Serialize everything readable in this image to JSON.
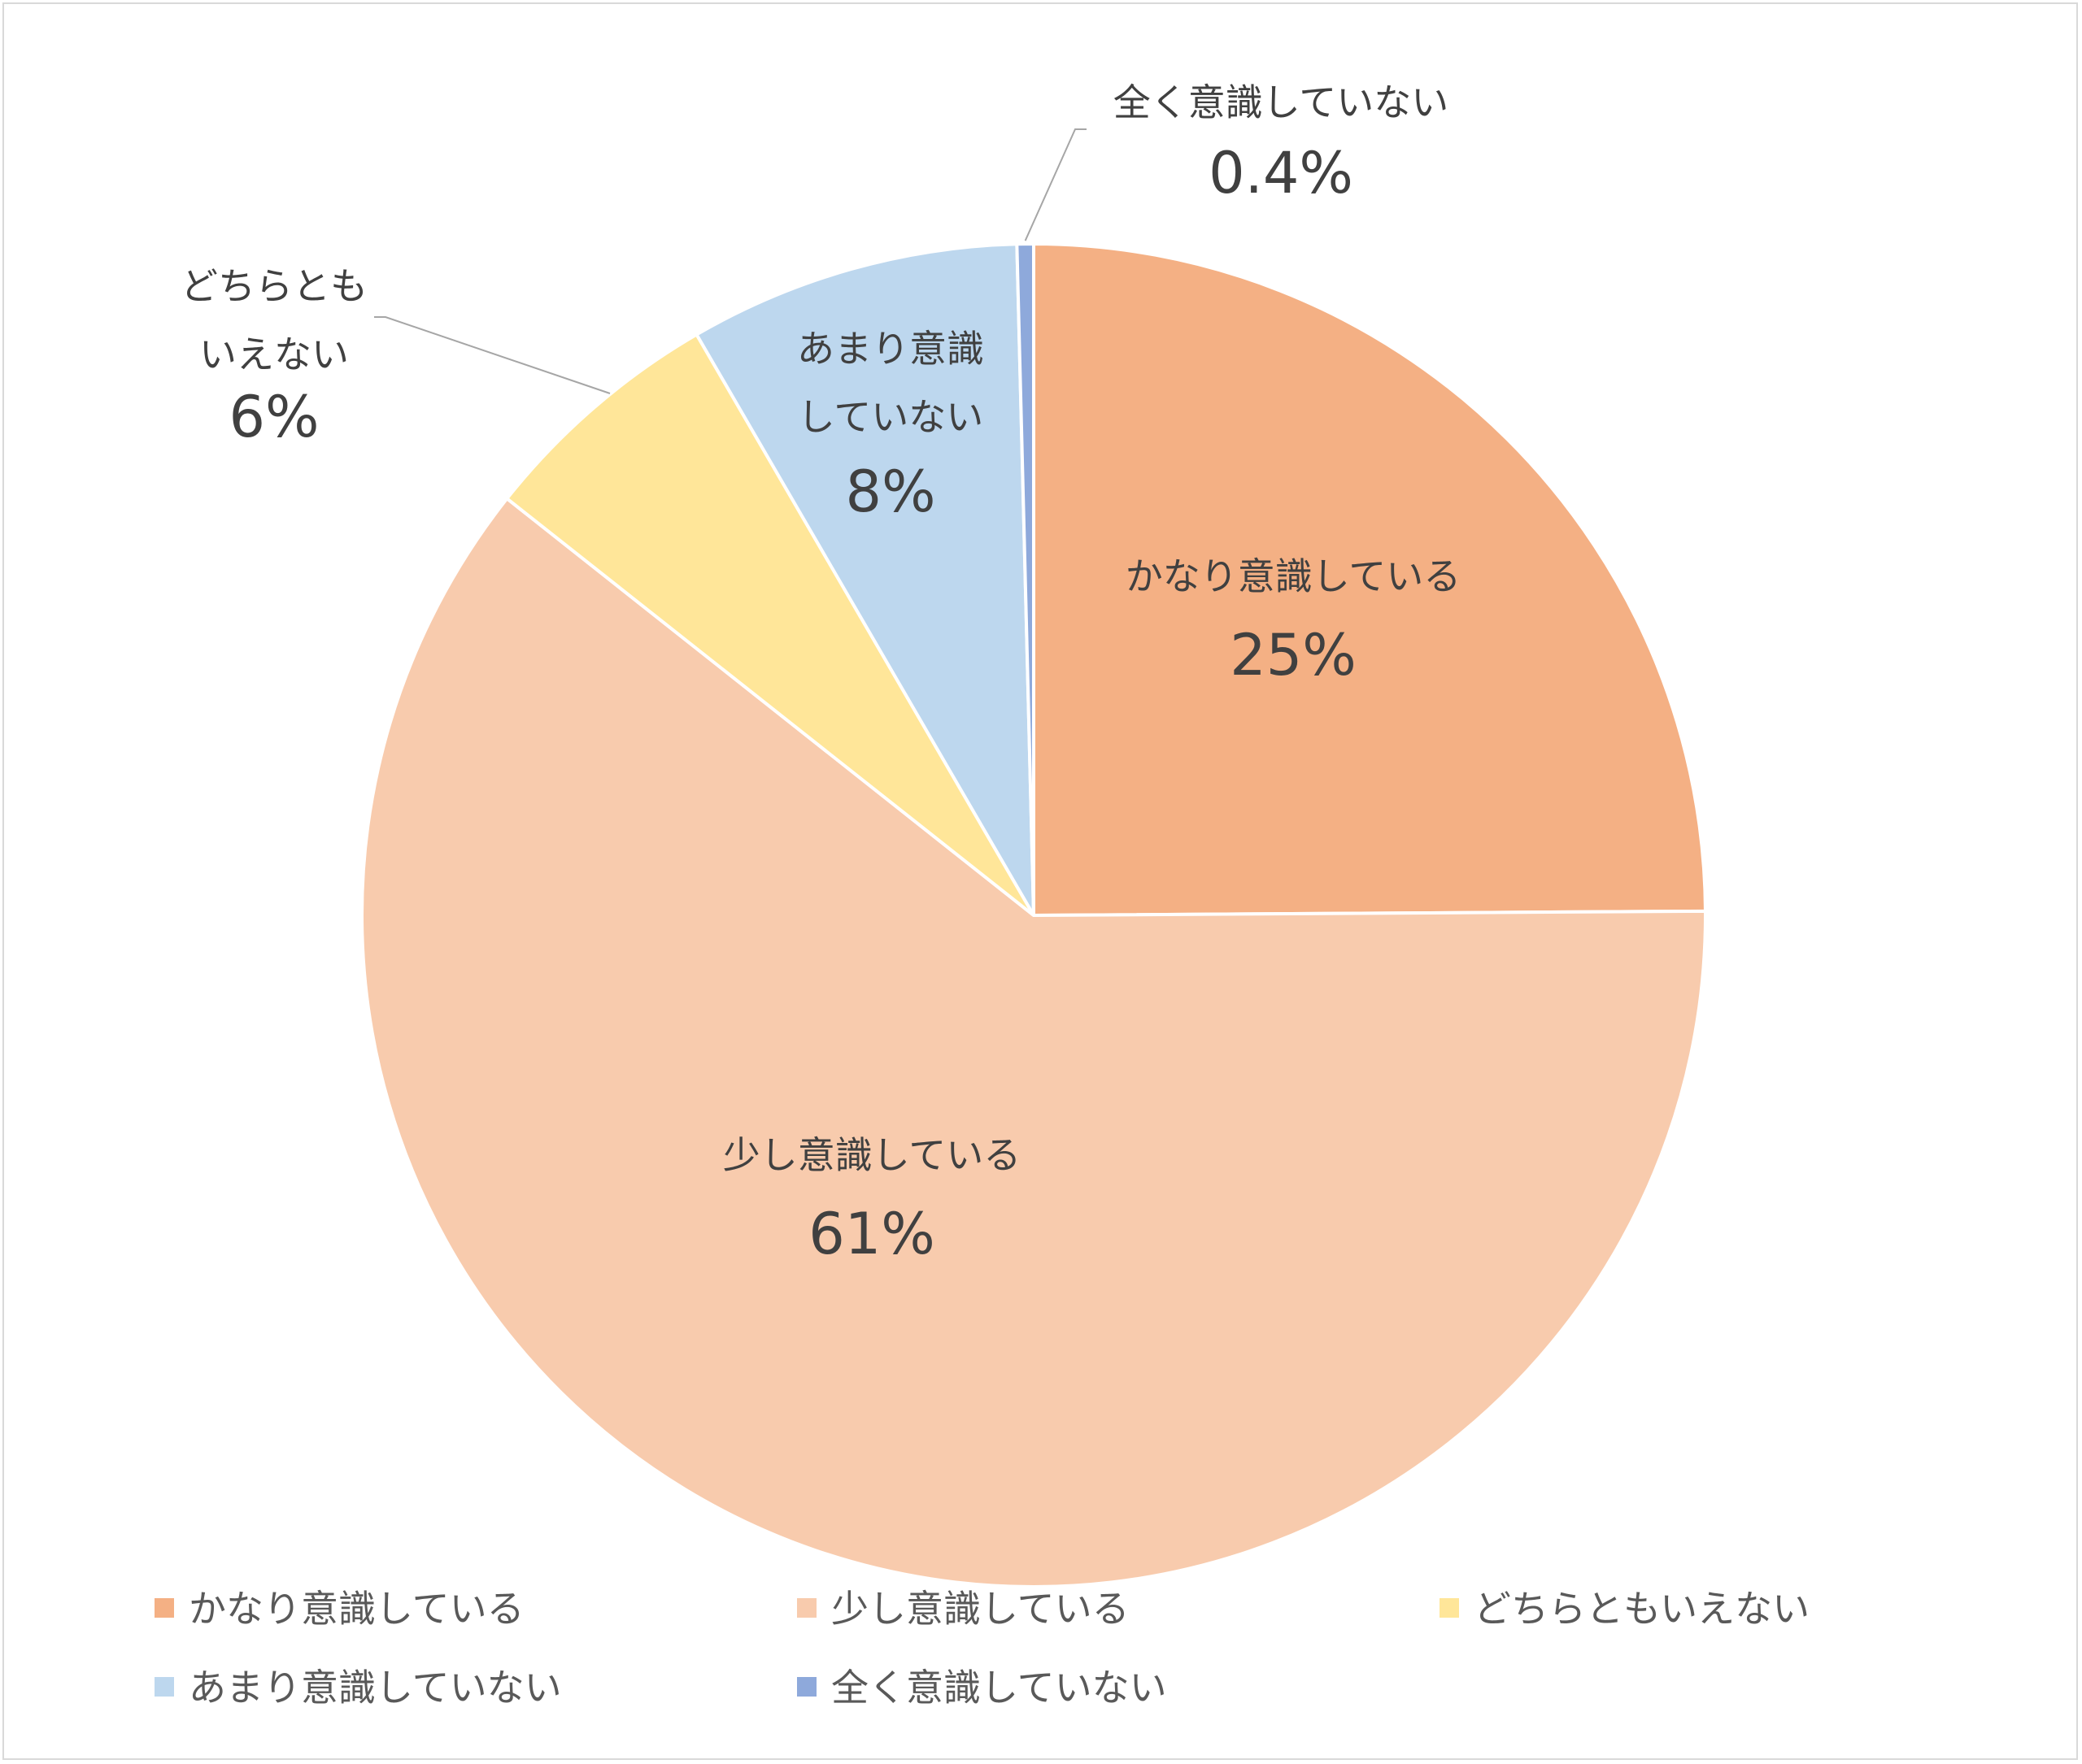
{
  "chart_data": {
    "type": "pie",
    "categories": [
      "かなり意識している",
      "少し意識している",
      "どちらともいえない",
      "あまり意識していない",
      "全く意識していない"
    ],
    "values": [
      25,
      61,
      6,
      8,
      0.4
    ],
    "value_labels": [
      "25%",
      "61%",
      "6%",
      "8%",
      "0.4%"
    ],
    "data_label_text": [
      [
        "かなり意識している"
      ],
      [
        "少し意識している"
      ],
      [
        "どちらとも",
        "いえない"
      ],
      [
        "あまり意識",
        "していない"
      ],
      [
        "全く意識していない"
      ]
    ],
    "colors": [
      "#F4B084",
      "#F8CBAD",
      "#FFE699",
      "#BDD7EE",
      "#8EA9DB"
    ],
    "legend_position": "bottom",
    "start_angle": "12 o'clock",
    "direction": "clockwise"
  }
}
